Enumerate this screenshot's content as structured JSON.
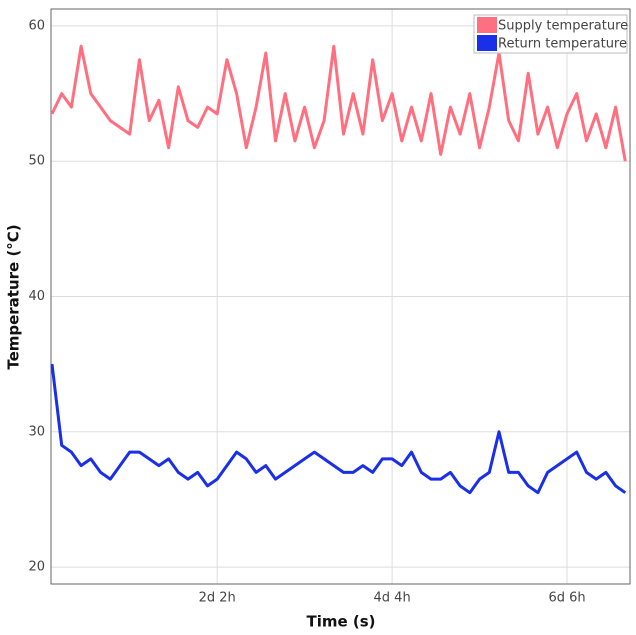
{
  "chart_data": {
    "type": "line",
    "xlabel": "Time (s)",
    "ylabel": "Temperature (°C)",
    "x": [
      10000,
      20000,
      30000,
      40000,
      50000,
      60000,
      70000,
      80000,
      90000,
      100000,
      110000,
      120000,
      130000,
      140000,
      150000,
      160000,
      170000,
      180000,
      190000,
      200000,
      210000,
      220000,
      230000,
      240000,
      250000,
      260000,
      270000,
      280000,
      290000,
      300000,
      310000,
      320000,
      330000,
      340000,
      350000,
      360000,
      370000,
      380000,
      390000,
      400000,
      410000,
      420000,
      430000,
      440000,
      450000,
      460000,
      470000,
      480000,
      490000,
      500000,
      510000,
      520000,
      530000,
      540000,
      550000,
      560000,
      570000,
      580000,
      590000,
      600000
    ],
    "series": [
      {
        "name": "Supply temperature",
        "color": "#ff6f80",
        "values": [
          53.5,
          55,
          54,
          58.5,
          55,
          54,
          53,
          52.5,
          52,
          57.5,
          53,
          54.5,
          51,
          55.5,
          53,
          52.5,
          54,
          53.5,
          57.5,
          55,
          51,
          54,
          58,
          51.5,
          55,
          51.5,
          54,
          51,
          53,
          58.5,
          52,
          55,
          52,
          57.5,
          53,
          55,
          51.5,
          54,
          51.5,
          55,
          50.5,
          54,
          52,
          55,
          51,
          54,
          58,
          53,
          51.5,
          56.5,
          52,
          54,
          51,
          53.5,
          55,
          51.5,
          53.5,
          51,
          54,
          50
        ]
      },
      {
        "name": "Return temperature",
        "color": "#1a2fe8",
        "values": [
          35,
          29,
          28.5,
          27.5,
          28,
          27,
          26.5,
          27.5,
          28.5,
          28.5,
          28,
          27.5,
          28,
          27,
          26.5,
          27,
          26,
          26.5,
          27.5,
          28.5,
          28,
          27,
          27.5,
          26.5,
          27,
          27.5,
          28,
          28.5,
          28,
          27.5,
          27,
          27,
          27.5,
          27,
          28,
          28,
          27.5,
          28.5,
          27,
          26.5,
          26.5,
          27,
          26,
          25.5,
          26.5,
          27,
          30,
          27,
          27,
          26,
          25.5,
          27,
          27.5,
          28,
          28.5,
          27,
          26.5,
          27,
          26,
          25.5
        ]
      }
    ],
    "xlim": [
      9000,
      604800
    ],
    "xticks": [
      {
        "value": 180000,
        "label": "2d 2h"
      },
      {
        "value": 360000,
        "label": "4d 4h"
      },
      {
        "value": 540000,
        "label": "6d 6h"
      }
    ],
    "ylim": [
      18.75,
      61.25
    ],
    "yticks": [
      20,
      30,
      40,
      50,
      60
    ],
    "grid": true,
    "legend": "upper right"
  }
}
